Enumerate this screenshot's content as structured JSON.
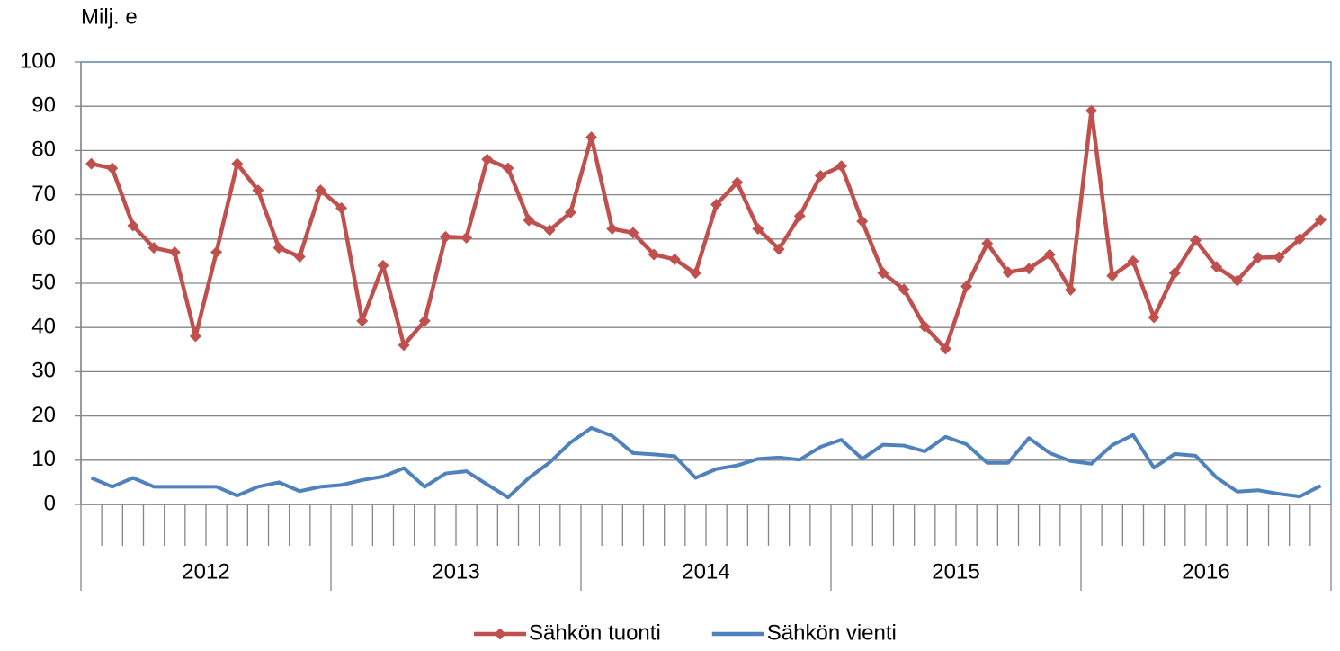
{
  "chart_data": {
    "type": "line",
    "y_axis_label": "Milj. e",
    "categories": [
      null,
      null,
      null,
      null,
      null,
      null,
      null,
      null,
      null,
      null,
      null,
      null,
      null,
      null,
      null,
      null,
      null,
      null,
      null,
      null,
      null,
      null,
      null,
      null,
      null,
      null,
      null,
      null,
      null,
      null,
      null,
      null,
      null,
      null,
      null,
      null,
      null,
      null,
      null,
      null,
      null,
      null,
      null,
      null,
      null,
      null,
      null,
      null,
      null,
      null,
      null,
      null,
      null,
      null,
      null,
      null,
      null,
      null,
      null,
      null
    ],
    "x_groups": [
      "2012",
      "2013",
      "2014",
      "2015",
      "2016"
    ],
    "ylim": [
      0,
      100
    ],
    "yticks": [
      0,
      10,
      20,
      30,
      40,
      50,
      60,
      70,
      80,
      90,
      100
    ],
    "grid": true,
    "legend": "bottom",
    "series": [
      {
        "name": "Sähkön tuonti",
        "color": "#c0504d",
        "marker": "diamond",
        "values": [
          77,
          76,
          63,
          58,
          57,
          38,
          57,
          77,
          71,
          58,
          56,
          71,
          67,
          41.5,
          54,
          36,
          41.5,
          60.5,
          60.3,
          78,
          76,
          64.2,
          62,
          66,
          83,
          62.3,
          61.4,
          56.5,
          55.4,
          52.3,
          67.8,
          72.8,
          62.3,
          57.7,
          65.2,
          74.3,
          76.5,
          64,
          52.3,
          48.6,
          40.2,
          35.2,
          49.3,
          59,
          52.5,
          53.3,
          56.5,
          48.5,
          89,
          51.7,
          55,
          42.3,
          52.3,
          59.7,
          53.7,
          50.6,
          55.8,
          55.9,
          60,
          64.3
        ]
      },
      {
        "name": "Sähkön vienti",
        "color": "#4f81bd",
        "values": [
          6,
          4,
          6,
          4,
          4,
          4,
          4,
          2,
          4,
          5,
          3,
          4,
          4.4,
          5.5,
          6.3,
          8.2,
          4,
          7,
          7.5,
          4.5,
          1.6,
          6,
          9.5,
          14,
          17.3,
          15.5,
          11.6,
          11.3,
          10.9,
          6,
          8,
          8.8,
          10.3,
          10.6,
          10.1,
          13,
          14.6,
          10.3,
          13.5,
          13.3,
          12,
          15.3,
          13.6,
          9.4,
          9.4,
          15,
          11.6,
          9.8,
          9.2,
          13.4,
          15.7,
          8.3,
          11.4,
          11,
          6.1,
          2.9,
          3.2,
          2.4,
          1.8,
          4.2
        ]
      }
    ]
  }
}
